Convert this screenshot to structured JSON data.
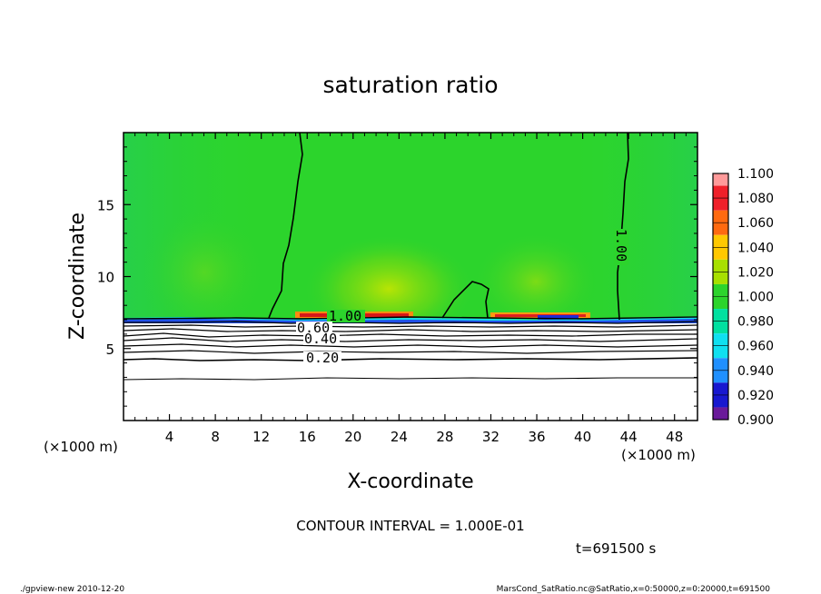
{
  "chart_data": {
    "type": "heatmap",
    "title": "saturation ratio",
    "xlabel": "X-coordinate",
    "ylabel": "Z-coordinate",
    "xunit": "(×1000 m)",
    "zunit": "(×1000 m)",
    "xlim": [
      0,
      50
    ],
    "ylim": [
      0,
      20
    ],
    "xticks": [
      4,
      8,
      12,
      16,
      20,
      24,
      28,
      32,
      36,
      40,
      44,
      48
    ],
    "yticks": [
      5,
      10,
      15
    ],
    "colorbar": {
      "levels": [
        "1.100",
        "1.080",
        "1.060",
        "1.040",
        "1.020",
        "1.000",
        "0.980",
        "0.960",
        "0.940",
        "0.920",
        "0.900"
      ],
      "colors": [
        "#ff9a9a",
        "#f0202a",
        "#ff6a10",
        "#ffc800",
        "#a8e000",
        "#2cd42c",
        "#00e0a0",
        "#10e0f0",
        "#2090ff",
        "#1818d0",
        "#6a1a9a"
      ]
    },
    "contour_labels": [
      {
        "text": "1.00",
        "x": 18.5,
        "z": 7.1
      },
      {
        "text": "0.60",
        "x": 16.2,
        "z": 6.2
      },
      {
        "text": "0.40",
        "x": 17.2,
        "z": 5.6
      },
      {
        "text": "0.20",
        "x": 17.2,
        "z": 4.4
      },
      {
        "text": "1.00",
        "x": 43.3,
        "z": 12.2
      }
    ],
    "contour_interval_text": "CONTOUR INTERVAL = 1.000E-01",
    "time_text": "t=691500 s"
  },
  "footer": {
    "left": "./gpview-new  2010-12-20",
    "right": "MarsCond_SatRatio.nc@SatRatio,x=0:50000,z=0:20000,t=691500"
  }
}
